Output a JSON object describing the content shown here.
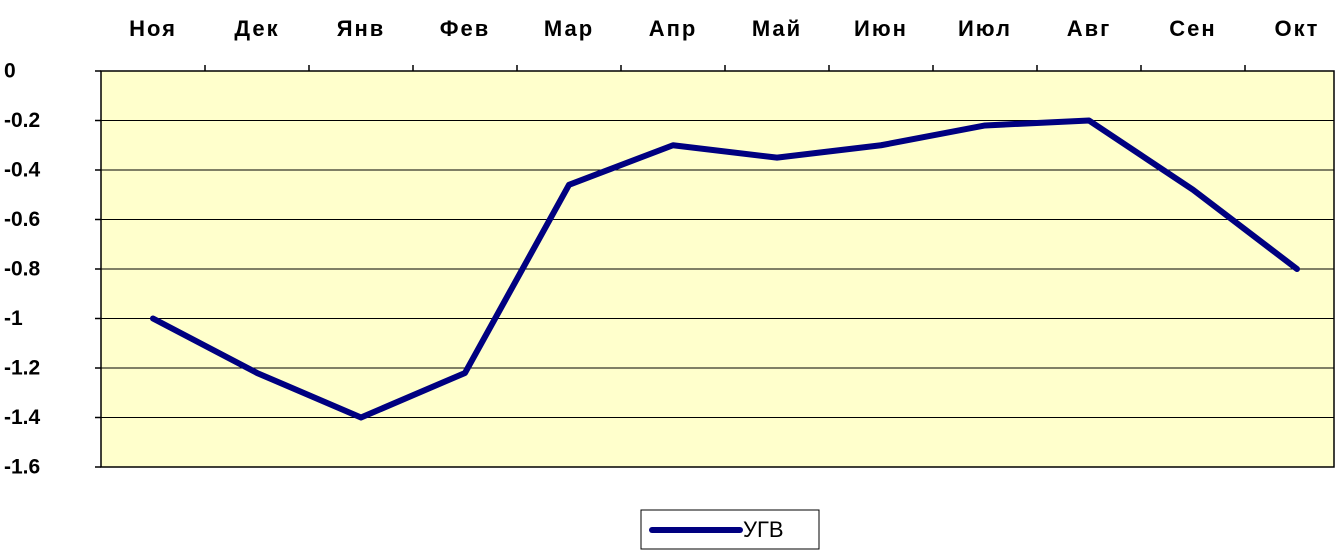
{
  "chart_data": {
    "type": "line",
    "categories": [
      "Ноя",
      "Дек",
      "Янв",
      "Фев",
      "Мар",
      "Апр",
      "Май",
      "Июн",
      "Июл",
      "Авг",
      "Сен",
      "Окт"
    ],
    "series": [
      {
        "name": "УГВ",
        "color": "#000080",
        "values": [
          -1.0,
          -1.22,
          -1.4,
          -1.22,
          -0.46,
          -0.3,
          -0.35,
          -0.3,
          -0.22,
          -0.2,
          -0.48,
          -0.8
        ]
      }
    ],
    "ylim": [
      -1.6,
      0
    ],
    "yticks": [
      0,
      -0.2,
      -0.4,
      -0.6,
      -0.8,
      -1,
      -1.2,
      -1.4,
      -1.6
    ],
    "grid": true,
    "plot_background": "#ffffcc",
    "legend": "bottom"
  }
}
